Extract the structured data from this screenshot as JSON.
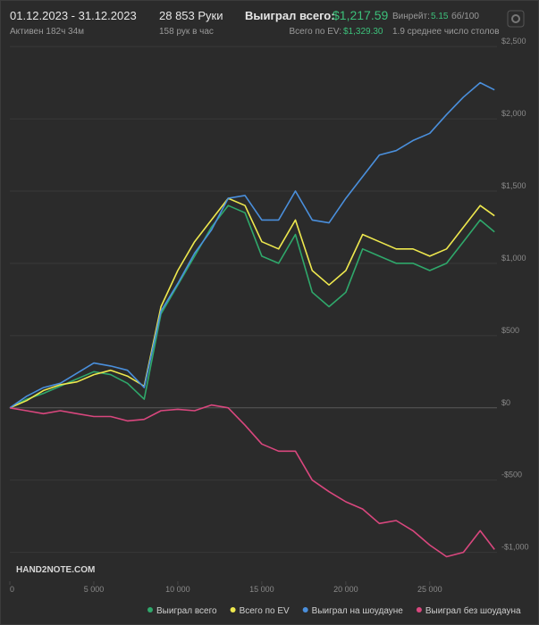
{
  "header": {
    "date_range": "01.12.2023 - 31.12.2023",
    "active": "Активен 182ч 34м",
    "hands": "28 853 Руки",
    "hands_rate": "158 рук в час",
    "won_label": "Выиграл всего:",
    "won_value": "$1,217.59",
    "ev_label": "Всего по EV:",
    "ev_value": "$1,329.30",
    "winrate_label": "Винрейт:",
    "winrate_value": "5.15",
    "winrate_unit": "бб/100",
    "tables": "1.9 среднее число столов"
  },
  "chart_data": {
    "type": "line",
    "watermark": "HAND2NOTE.COM",
    "x": [
      0,
      1000,
      2000,
      3000,
      4000,
      5000,
      6000,
      7000,
      8000,
      9000,
      10000,
      11000,
      12000,
      13000,
      14000,
      15000,
      16000,
      17000,
      18000,
      19000,
      20000,
      21000,
      22000,
      23000,
      24000,
      25000,
      26000,
      27000,
      28000,
      28853
    ],
    "xlim": [
      0,
      29000
    ],
    "xticks": [
      0,
      {
        "value": 5000,
        "label": "5 000"
      },
      {
        "value": 10000,
        "label": "10 000"
      },
      {
        "value": 15000,
        "label": "15 000"
      },
      {
        "value": 20000,
        "label": "20 000"
      },
      {
        "value": 25000,
        "label": "25 000"
      }
    ],
    "ylim": [
      -1200,
      2600
    ],
    "yticks": [
      {
        "value": -1000,
        "label": "-$1,000"
      },
      {
        "value": -500,
        "label": "-$500"
      },
      {
        "value": 0,
        "label": "$0"
      },
      {
        "value": 500,
        "label": "$500"
      },
      {
        "value": 1000,
        "label": "$1,000"
      },
      {
        "value": 1500,
        "label": "$1,500"
      },
      {
        "value": 2000,
        "label": "$2,000"
      },
      {
        "value": 2500,
        "label": "$2,500"
      }
    ],
    "grid": true,
    "series": [
      {
        "name": "Выиграл всего",
        "color": "#2fa86b",
        "values": [
          0,
          60,
          100,
          150,
          200,
          250,
          230,
          170,
          60,
          650,
          850,
          1050,
          1250,
          1400,
          1350,
          1050,
          1000,
          1200,
          800,
          700,
          800,
          1100,
          1050,
          1000,
          1000,
          950,
          1000,
          1150,
          1300,
          1217.59
        ]
      },
      {
        "name": "Всего по EV",
        "color": "#eee84e",
        "values": [
          0,
          50,
          120,
          160,
          180,
          230,
          260,
          220,
          150,
          700,
          950,
          1150,
          1300,
          1450,
          1400,
          1150,
          1100,
          1300,
          950,
          850,
          950,
          1200,
          1150,
          1100,
          1100,
          1050,
          1100,
          1250,
          1400,
          1329.3
        ]
      },
      {
        "name": "Выиграл на шоудауне",
        "color": "#4a8fdc",
        "values": [
          0,
          80,
          140,
          170,
          240,
          310,
          290,
          260,
          140,
          670,
          860,
          1070,
          1230,
          1450,
          1470,
          1300,
          1300,
          1500,
          1300,
          1280,
          1450,
          1600,
          1750,
          1780,
          1850,
          1900,
          2030,
          2150,
          2250,
          2200
        ]
      },
      {
        "name": "Выиграл без шоудауна",
        "color": "#d9477e",
        "values": [
          0,
          -20,
          -40,
          -20,
          -40,
          -60,
          -60,
          -90,
          -80,
          -20,
          -10,
          -20,
          20,
          0,
          -120,
          -250,
          -300,
          -300,
          -500,
          -580,
          -650,
          -700,
          -800,
          -780,
          -850,
          -950,
          -1030,
          -1000,
          -850,
          -980
        ]
      }
    ]
  }
}
